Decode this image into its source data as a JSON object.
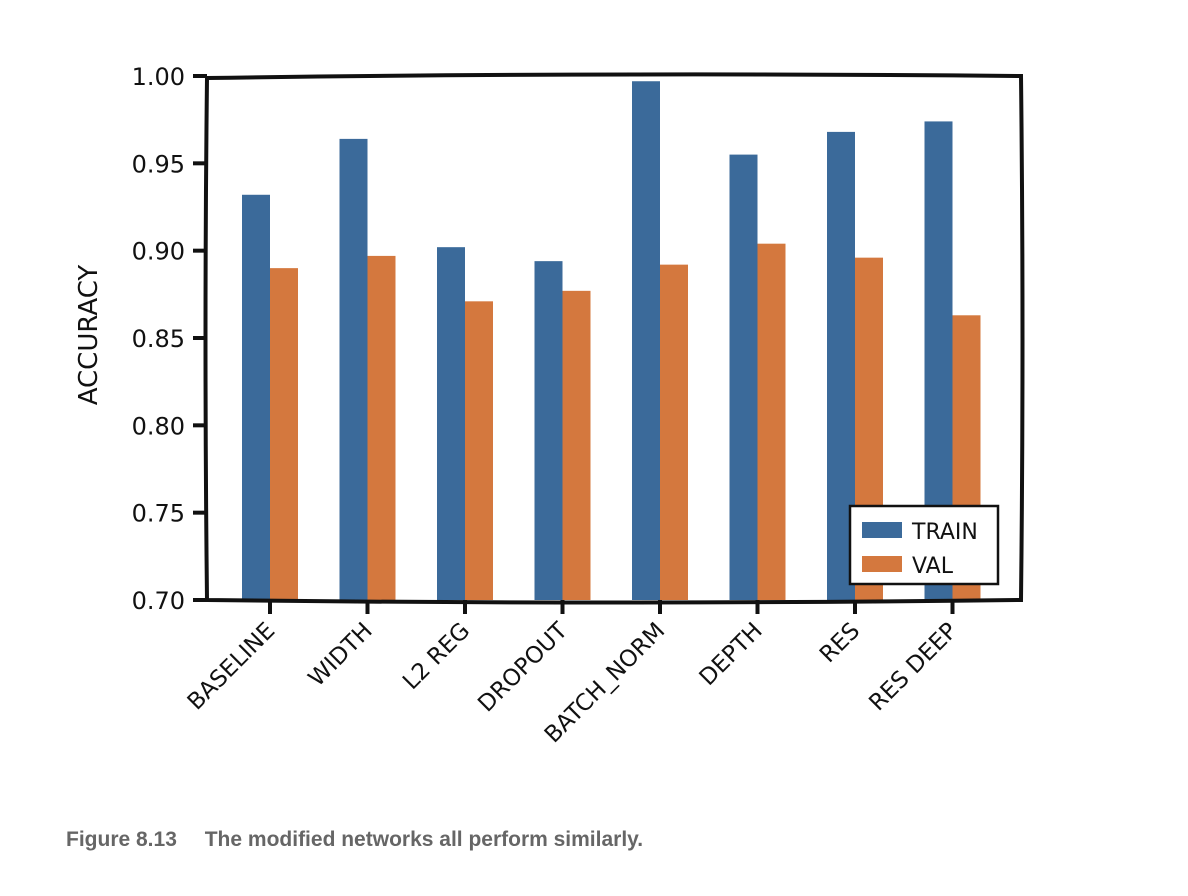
{
  "chart_data": {
    "type": "bar",
    "categories": [
      "BASELINE",
      "WIDTH",
      "L2 REG",
      "DROPOUT",
      "BATCH_NORM",
      "DEPTH",
      "RES",
      "RES DEEP"
    ],
    "series": [
      {
        "name": "TRAIN",
        "color": "#3b6a9a",
        "values": [
          0.932,
          0.964,
          0.902,
          0.894,
          0.997,
          0.955,
          0.968,
          0.974
        ]
      },
      {
        "name": "VAL",
        "color": "#d4783e",
        "values": [
          0.89,
          0.897,
          0.871,
          0.877,
          0.892,
          0.904,
          0.896,
          0.863
        ]
      }
    ],
    "title": "",
    "xlabel": "",
    "ylabel": "ACCURACY",
    "ylim": [
      0.7,
      1.0
    ],
    "yticks": [
      "0.70",
      "0.75",
      "0.80",
      "0.85",
      "0.90",
      "0.95",
      "1.00"
    ],
    "legend": "bottom-right",
    "grid": false
  },
  "caption": {
    "number": "Figure 8.13",
    "text": "The modified networks all perform similarly."
  }
}
